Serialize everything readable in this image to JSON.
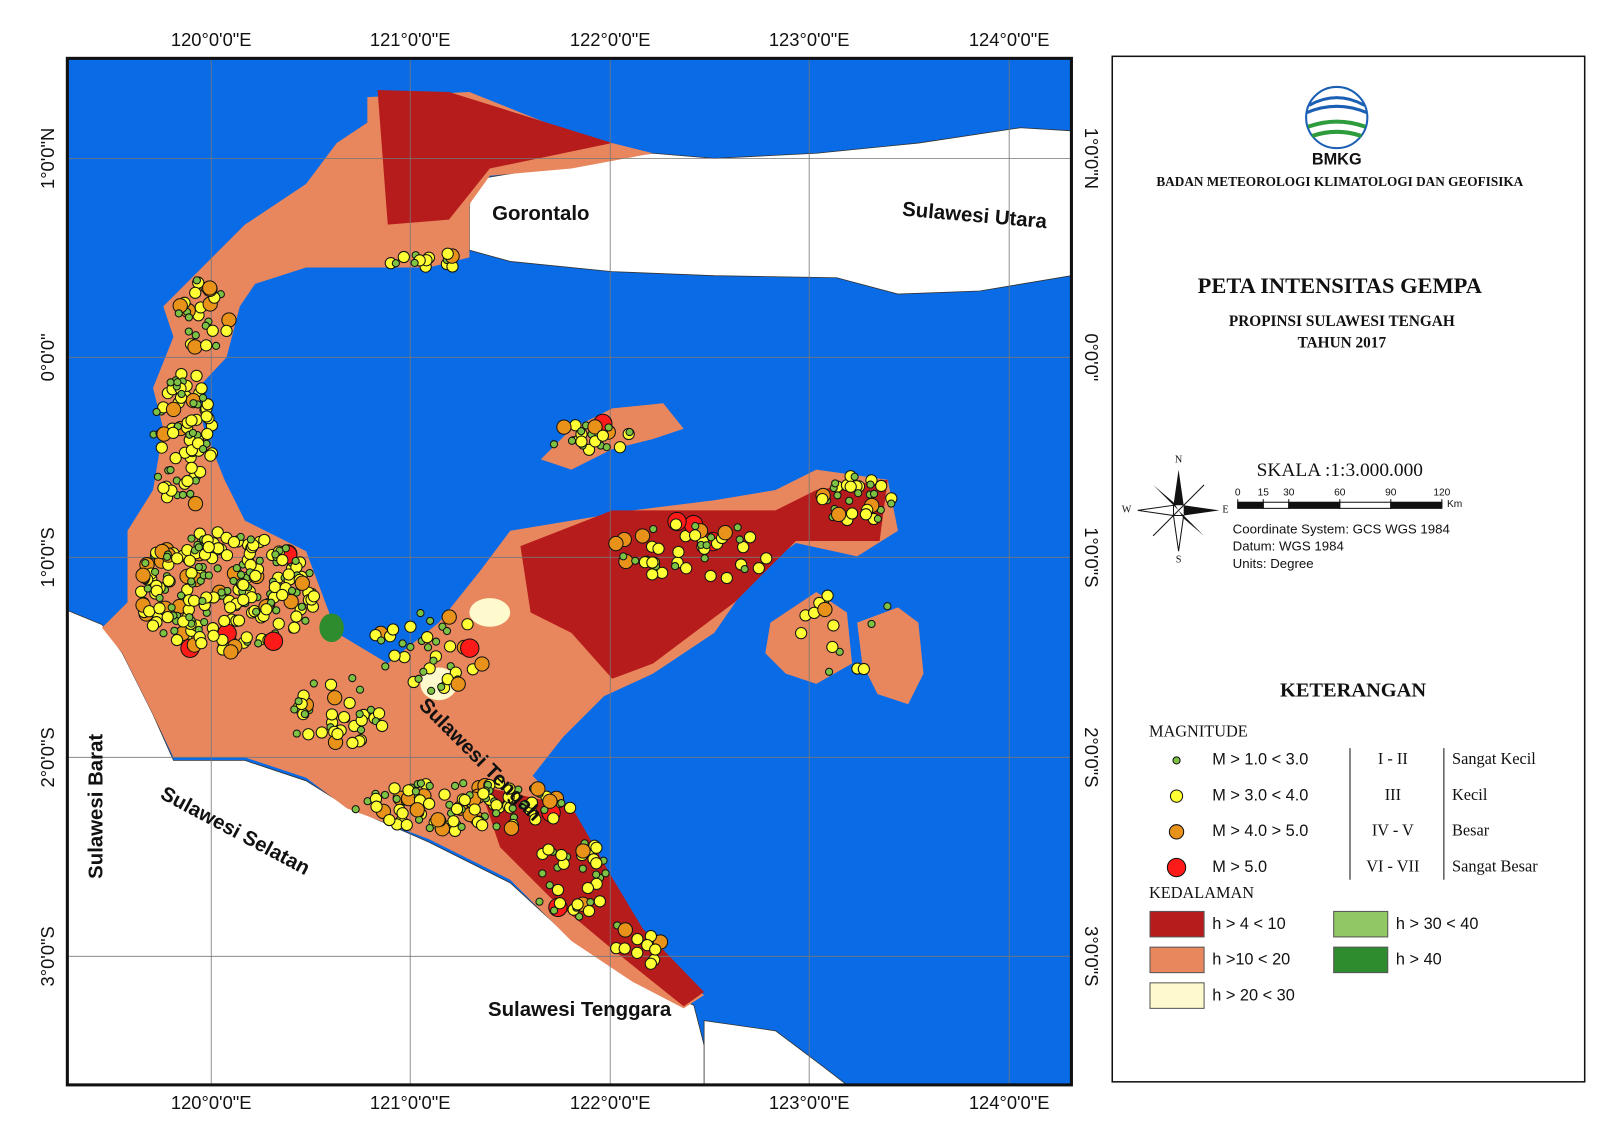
{
  "map": {
    "longitude_labels": [
      "120°0'0\"E",
      "121°0'0\"E",
      "122°0'0\"E",
      "123°0'0\"E",
      "124°0'0\"E"
    ],
    "latitude_labels": [
      "1°0'0\"N",
      "0°0'0\"",
      "1°0'0\"S",
      "2°0'0\"S",
      "3°0'0\"S"
    ],
    "places": [
      "Gorontalo",
      "Sulawesi Utara",
      "Sulawesi Barat",
      "Sulawesi Selatan",
      "Sulawesi Tengah",
      "Sulawesi Tenggara"
    ]
  },
  "legend": {
    "logo_text": "BMKG",
    "agency": "BADAN METEOROLOGI KLIMATOLOGI DAN GEOFISIKA",
    "title": "PETA INTENSITAS GEMPA",
    "subtitle": "PROPINSI SULAWESI TENGAH",
    "year": "TAHUN 2017",
    "scale": "SKALA :1:3.000.000",
    "scale_bar": {
      "ticks": [
        0,
        15,
        30,
        60,
        90,
        120
      ],
      "unit": "Km"
    },
    "compass": [
      "N",
      "E",
      "S",
      "W"
    ],
    "coordinate_info": [
      "Coordinate System: GCS WGS 1984",
      "Datum: WGS 1984",
      "Units: Degree"
    ],
    "heading": "KETERANGAN",
    "magnitude": {
      "title": "MAGNITUDE",
      "items": [
        {
          "label": "M > 1.0 < 3.0",
          "intensity": "I - II",
          "description": "Sangat Kecil",
          "color": "#7dc242"
        },
        {
          "label": "M > 3.0 < 4.0",
          "intensity": "III",
          "description": "Kecil",
          "color": "#ffff33"
        },
        {
          "label": "M > 4.0 > 5.0",
          "intensity": "IV - V",
          "description": "Besar",
          "color": "#e8921a"
        },
        {
          "label": "M > 5.0",
          "intensity": "VI - VII",
          "description": "Sangat Besar",
          "color": "#ff1a1a"
        }
      ]
    },
    "depth": {
      "title": "KEDALAMAN",
      "items": [
        {
          "label": "h > 4 < 10",
          "color": "#b71c1c"
        },
        {
          "label": "h >10 < 20",
          "color": "#e8875e"
        },
        {
          "label": "h > 20 < 30",
          "color": "#fffacd"
        },
        {
          "label": "h > 30 < 40",
          "color": "#92c863"
        },
        {
          "label": "h > 40",
          "color": "#2e8b2e"
        }
      ]
    }
  }
}
